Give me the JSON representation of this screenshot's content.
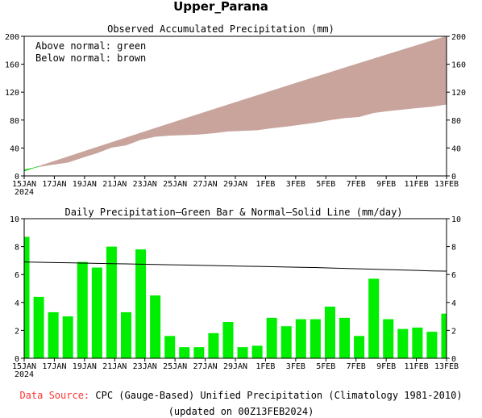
{
  "title": "Upper_Parana",
  "panels": {
    "top": {
      "title": "Observed Accumulated Precipitation (mm)",
      "legend_line1": "Above normal: green",
      "legend_line2": "Below normal: brown"
    },
    "bottom": {
      "title": "Daily Precipitation—Green Bar & Normal—Solid Line (mm/day)"
    }
  },
  "footer": {
    "source_label": "Data Source:",
    "source_text": "CPC (Gauge-Based) Unified Precipitation (Climatology 1981-2010)",
    "updated": "(updated on 00Z13FEB2024)"
  },
  "colors": {
    "above_normal": "#00cc00",
    "below_normal": "#c8a49c",
    "bar": "#00ee00",
    "source_label": "#ff3333"
  },
  "chart_data": [
    {
      "type": "area",
      "title": "Observed Accumulated Precipitation (mm)",
      "x_tick_labels": [
        "15JAN",
        "17JAN",
        "19JAN",
        "21JAN",
        "23JAN",
        "25JAN",
        "27JAN",
        "29JAN",
        "1FEB",
        "3FEB",
        "5FEB",
        "7FEB",
        "9FEB",
        "11FEB",
        "13FEB"
      ],
      "x_first_tick_year": "2024",
      "y_tick_labels": [
        "0",
        "40",
        "80",
        "120",
        "160",
        "200"
      ],
      "ylim": [
        0,
        200
      ],
      "x": [
        "15JAN",
        "16JAN",
        "17JAN",
        "18JAN",
        "19JAN",
        "20JAN",
        "21JAN",
        "22JAN",
        "23JAN",
        "24JAN",
        "25JAN",
        "26JAN",
        "27JAN",
        "28JAN",
        "29JAN",
        "30JAN",
        "31JAN",
        "1FEB",
        "2FEB",
        "3FEB",
        "4FEB",
        "5FEB",
        "6FEB",
        "7FEB",
        "8FEB",
        "9FEB",
        "10FEB",
        "11FEB",
        "12FEB",
        "13FEB"
      ],
      "series": [
        {
          "name": "observed",
          "values": [
            8.7,
            13.1,
            16.4,
            19.4,
            26.3,
            32.8,
            40.8,
            44.1,
            51.9,
            56.4,
            58.0,
            58.8,
            59.6,
            61.4,
            64.0,
            64.8,
            65.7,
            68.6,
            70.9,
            73.7,
            76.5,
            80.2,
            83.1,
            84.7,
            90.4,
            93.2,
            95.3,
            97.5,
            99.4,
            102.6
          ]
        },
        {
          "name": "normal",
          "values": [
            6.9,
            13.8,
            20.7,
            27.5,
            34.4,
            41.2,
            48.0,
            54.8,
            61.6,
            68.4,
            75.1,
            81.9,
            88.6,
            95.3,
            102.0,
            108.7,
            115.3,
            122.0,
            128.6,
            135.2,
            141.8,
            148.3,
            154.9,
            161.4,
            167.9,
            174.4,
            180.9,
            187.3,
            193.8,
            200.2
          ]
        }
      ]
    },
    {
      "type": "bar",
      "title": "Daily Precipitation—Green Bar & Normal—Solid Line (mm/day)",
      "x_tick_labels": [
        "15JAN",
        "17JAN",
        "19JAN",
        "21JAN",
        "23JAN",
        "25JAN",
        "27JAN",
        "29JAN",
        "1FEB",
        "3FEB",
        "5FEB",
        "7FEB",
        "9FEB",
        "11FEB",
        "13FEB"
      ],
      "x_first_tick_year": "2024",
      "y_tick_labels": [
        "0",
        "2",
        "4",
        "6",
        "8",
        "10"
      ],
      "ylim": [
        0,
        10
      ],
      "x": [
        "15JAN",
        "16JAN",
        "17JAN",
        "18JAN",
        "19JAN",
        "20JAN",
        "21JAN",
        "22JAN",
        "23JAN",
        "24JAN",
        "25JAN",
        "26JAN",
        "27JAN",
        "28JAN",
        "29JAN",
        "30JAN",
        "31JAN",
        "1FEB",
        "2FEB",
        "3FEB",
        "4FEB",
        "5FEB",
        "6FEB",
        "7FEB",
        "8FEB",
        "9FEB",
        "10FEB",
        "11FEB",
        "12FEB",
        "13FEB"
      ],
      "series": [
        {
          "name": "daily",
          "values": [
            8.7,
            4.4,
            3.3,
            3.0,
            6.9,
            6.5,
            8.0,
            3.3,
            7.8,
            4.5,
            1.6,
            0.8,
            0.8,
            1.8,
            2.6,
            0.8,
            0.9,
            2.9,
            2.3,
            2.8,
            2.8,
            3.7,
            2.9,
            1.6,
            5.7,
            2.8,
            2.1,
            2.2,
            1.9,
            3.2
          ]
        },
        {
          "name": "normal",
          "values": [
            6.9,
            6.88,
            6.86,
            6.84,
            6.82,
            6.8,
            6.78,
            6.76,
            6.74,
            6.72,
            6.7,
            6.68,
            6.66,
            6.64,
            6.62,
            6.6,
            6.58,
            6.56,
            6.54,
            6.52,
            6.5,
            6.47,
            6.44,
            6.41,
            6.38,
            6.35,
            6.32,
            6.29,
            6.26,
            6.24
          ]
        }
      ]
    }
  ]
}
